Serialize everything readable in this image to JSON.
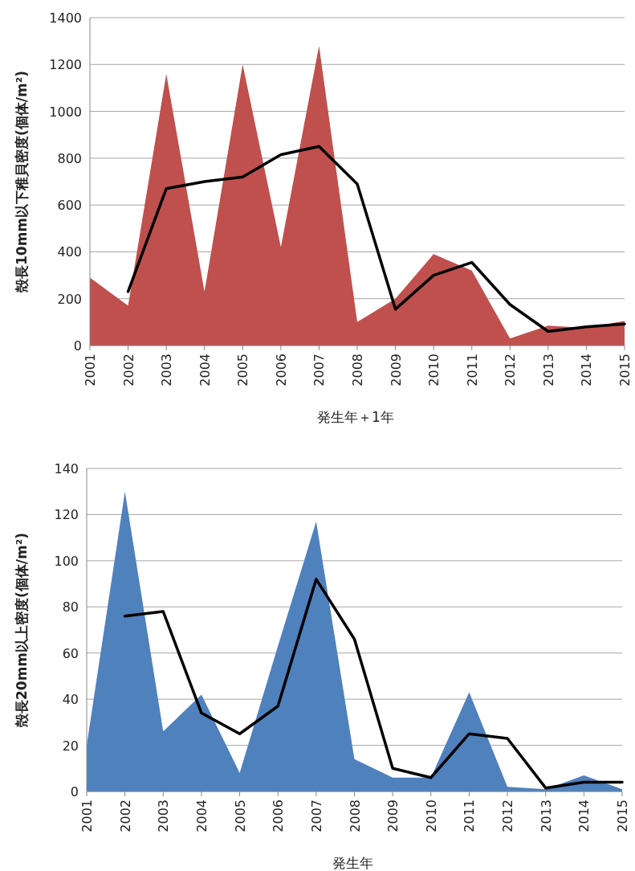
{
  "chart_data": [
    {
      "type": "area",
      "categories": [
        "2001",
        "2002",
        "2003",
        "2004",
        "2005",
        "2006",
        "2007",
        "2008",
        "2009",
        "2010",
        "2011",
        "2012",
        "2013",
        "2014",
        "2015"
      ],
      "series": [
        {
          "type": "area",
          "color": "#c0504d",
          "values": [
            290,
            170,
            1160,
            230,
            1200,
            420,
            1280,
            100,
            200,
            390,
            320,
            30,
            85,
            75,
            105
          ]
        },
        {
          "type": "line",
          "color": "#000000",
          "values": [
            null,
            230,
            670,
            700,
            720,
            815,
            850,
            690,
            155,
            300,
            355,
            175,
            60,
            80,
            92
          ]
        }
      ],
      "ylim": [
        0,
        1400
      ],
      "yticks": [
        0,
        200,
        400,
        600,
        800,
        1000,
        1200,
        1400
      ],
      "grid": "y",
      "ylabel": "殻長10mm以下稚貝密度(個体/m²)",
      "xlabel": "発生年＋1年"
    },
    {
      "type": "area",
      "categories": [
        "2001",
        "2002",
        "2003",
        "2004",
        "2005",
        "2006",
        "2007",
        "2008",
        "2009",
        "2010",
        "2011",
        "2012",
        "2013",
        "2014",
        "2015"
      ],
      "series": [
        {
          "type": "area",
          "color": "#4f81bd",
          "values": [
            20,
            130,
            26,
            42,
            8,
            63,
            117,
            14,
            6,
            6,
            43,
            2,
            1,
            7,
            1
          ]
        },
        {
          "type": "line",
          "color": "#000000",
          "values": [
            null,
            76,
            78,
            34,
            25,
            37,
            92,
            66,
            10,
            6,
            25,
            23,
            1.5,
            4,
            4
          ]
        }
      ],
      "ylim": [
        0,
        140
      ],
      "yticks": [
        0,
        20,
        40,
        60,
        80,
        100,
        120,
        140
      ],
      "grid": "y",
      "ylabel": "殻長20mm以上密度(個体/m²)",
      "xlabel": "発生年"
    }
  ]
}
